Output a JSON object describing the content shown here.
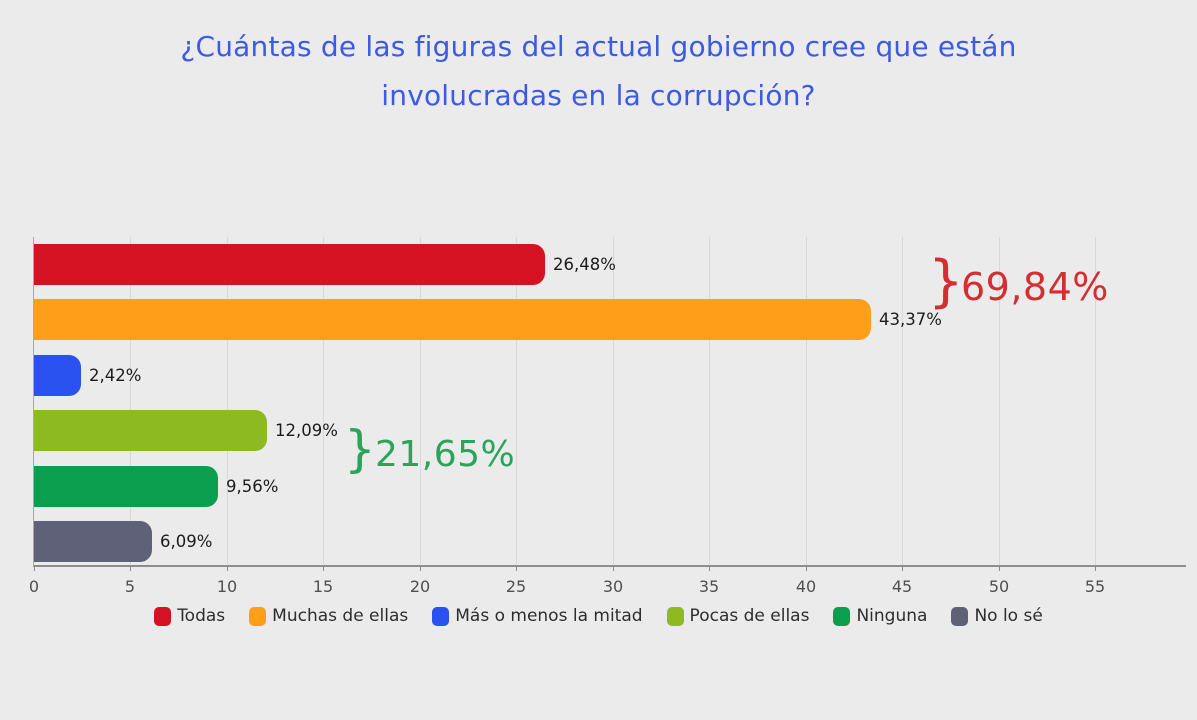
{
  "title": {
    "line1": "¿Cuántas de las figuras del actual gobierno cree que están",
    "line2": "involucradas en la corrupción?",
    "full": "¿Cuántas de las figuras del actual gobierno cree que están involucradas en la corrupción?",
    "color": "#3c5ae4"
  },
  "chart_data": {
    "type": "bar",
    "orientation": "horizontal",
    "title": "¿Cuántas de las figuras del actual gobierno cree que están involucradas en la corrupción?",
    "categories": [
      "Todas",
      "Muchas de ellas",
      "Más o menos la mitad",
      "Pocas de ellas",
      "Ninguna",
      "No lo sé"
    ],
    "values": [
      26.48,
      43.37,
      2.42,
      12.09,
      9.56,
      6.09
    ],
    "value_labels": [
      "26,48%",
      "43,37%",
      "2,42%",
      "12,09%",
      "9,56%",
      "6,09%"
    ],
    "bar_colors": [
      "#d41221",
      "#ff9f19",
      "#2a52f0",
      "#8dba20",
      "#0a9e4e",
      "#5f6179"
    ],
    "x_ticks": [
      0,
      5,
      10,
      15,
      20,
      25,
      30,
      35,
      40,
      45,
      50,
      55
    ],
    "xlim": [
      0,
      59.7
    ],
    "grid": true,
    "legend_position": "bottom",
    "annotations": [
      {
        "brace": "}",
        "text": "69,84%",
        "color": "#d42e32",
        "covers": [
          "Todas",
          "Muchas de ellas"
        ]
      },
      {
        "brace": "}",
        "text": "21,65%",
        "color": "#2aa45a",
        "covers": [
          "Pocas de ellas",
          "Ninguna"
        ]
      }
    ]
  },
  "legend": {
    "items": [
      {
        "label": "Todas",
        "color": "#d41221"
      },
      {
        "label": "Muchas de ellas",
        "color": "#ff9f19"
      },
      {
        "label": "Más o menos la mitad",
        "color": "#2a52f0"
      },
      {
        "label": "Pocas de ellas",
        "color": "#8dba20"
      },
      {
        "label": "Ninguna",
        "color": "#0a9e4e"
      },
      {
        "label": "No lo sé",
        "color": "#5f6179"
      }
    ]
  }
}
